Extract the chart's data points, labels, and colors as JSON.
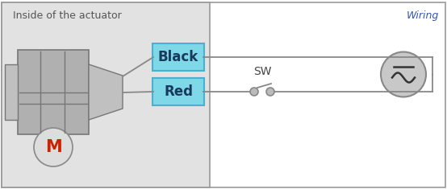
{
  "bg_color": "#ffffff",
  "left_panel_color": "#e2e2e2",
  "border_color": "#999999",
  "wire_color": "#888888",
  "label_text_inside": "Inside of the actuator",
  "label_text_wiring": "Wiring",
  "label_color_inside": "#555555",
  "label_color_wiring": "#3355bb",
  "red_box_label": "Red",
  "black_box_label": "Black",
  "box_fill": "#7ed8e8",
  "box_edge": "#4ab0cc",
  "box_text_color": "#1a3a5c",
  "sw_label": "SW",
  "motor_label": "M",
  "motor_label_color": "#cc2200",
  "motor_circle_fill": "#dddddd",
  "motor_circle_edge": "#888888",
  "actuator_body_color": "#b0b0b0",
  "actuator_body_edge": "#777777",
  "ac_circle_fill": "#c8c8c8",
  "ac_circle_edge": "#888888",
  "ac_symbol_color": "#333333"
}
